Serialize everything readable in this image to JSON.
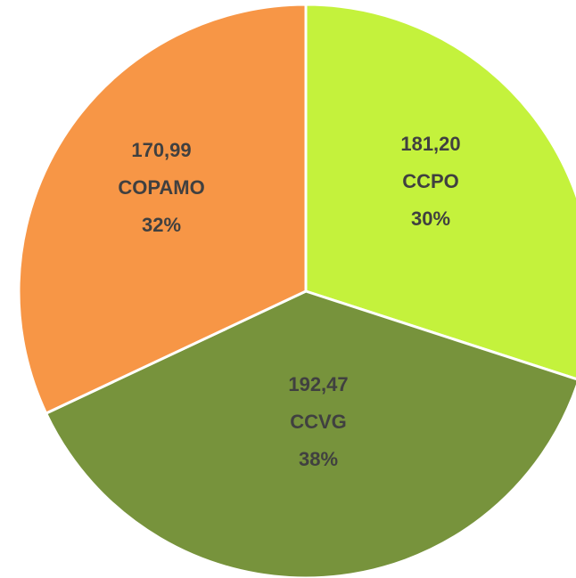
{
  "chart_data": {
    "type": "pie",
    "categories": [
      "CCPO",
      "CCVG",
      "COPAMO"
    ],
    "values": [
      30,
      38,
      32
    ],
    "value_labels": [
      "30%",
      "38%",
      "32%"
    ],
    "amounts": [
      181.2,
      192.47,
      170.99
    ],
    "amount_labels": [
      "181,20",
      "192,47",
      "170,99"
    ],
    "colors": [
      "#c4f23c",
      "#77933c",
      "#f79646"
    ]
  }
}
